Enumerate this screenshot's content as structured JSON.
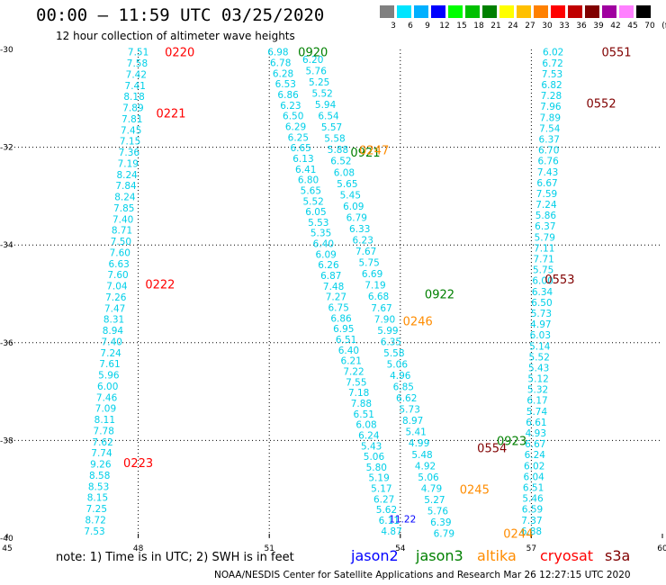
{
  "title": "00:00 – 11:59 UTC 03/25/2020",
  "subtitle": "12 hour collection of altimeter wave heights",
  "color_scale": {
    "unit": "(ft)",
    "labels": [
      "3",
      "6",
      "9",
      "12",
      "15",
      "18",
      "21",
      "24",
      "27",
      "30",
      "33",
      "36",
      "39",
      "42",
      "45",
      "70"
    ],
    "colors": [
      "#808080",
      "#00e5ff",
      "#00b0ff",
      "#0000ff",
      "#00ff00",
      "#00c000",
      "#008000",
      "#ffff00",
      "#ffc000",
      "#ff8000",
      "#ff0000",
      "#c00000",
      "#800000",
      "#a000a0",
      "#ff80ff",
      "#000000"
    ]
  },
  "note": "note: 1) Time is in UTC; 2) SWH is in feet",
  "legend": [
    {
      "name": "jason2",
      "color": "#0000ff"
    },
    {
      "name": "jason3",
      "color": "#008000"
    },
    {
      "name": "altika",
      "color": "#ff8c00"
    },
    {
      "name": "cryosat",
      "color": "#ff0000"
    },
    {
      "name": "s3a",
      "color": "#800000"
    }
  ],
  "credit": "NOAA/NESDIS Center for Satellite Applications and Research    Mar 26 12:27:15 UTC 2020",
  "chart_data": {
    "type": "scatter",
    "x_ticks": [
      "45",
      "48",
      "51",
      "54",
      "57",
      "60"
    ],
    "y_ticks": [
      "-30",
      "-32",
      "-34",
      "-36",
      "-38",
      "-40"
    ],
    "xlim": [
      45,
      60
    ],
    "ylim": [
      -40,
      -30
    ],
    "grid": true,
    "times": [
      {
        "text": "0220",
        "lon": 48.95,
        "lat": -30.05,
        "color": "#ff0000"
      },
      {
        "text": "0221",
        "lon": 48.75,
        "lat": -31.3,
        "color": "#ff0000"
      },
      {
        "text": "0222",
        "lon": 48.5,
        "lat": -34.8,
        "color": "#ff0000"
      },
      {
        "text": "0223",
        "lon": 48.0,
        "lat": -38.45,
        "color": "#ff0000"
      },
      {
        "text": "0920",
        "lon": 52.0,
        "lat": -30.05,
        "color": "#008000"
      },
      {
        "text": "0921",
        "lon": 53.2,
        "lat": -32.1,
        "color": "#008000"
      },
      {
        "text": "0922",
        "lon": 54.9,
        "lat": -35.0,
        "color": "#008000"
      },
      {
        "text": "0923",
        "lon": 56.55,
        "lat": -38.0,
        "color": "#008000"
      },
      {
        "text": "0247",
        "lon": 53.4,
        "lat": -32.05,
        "color": "#ff8c00"
      },
      {
        "text": "0246",
        "lon": 54.4,
        "lat": -35.55,
        "color": "#ff8c00"
      },
      {
        "text": "0245",
        "lon": 55.7,
        "lat": -39.0,
        "color": "#ff8c00"
      },
      {
        "text": "0244",
        "lon": 56.7,
        "lat": -39.9,
        "color": "#ff8c00"
      },
      {
        "text": "0551",
        "lon": 58.95,
        "lat": -30.05,
        "color": "#800000"
      },
      {
        "text": "0552",
        "lon": 58.6,
        "lat": -31.1,
        "color": "#800000"
      },
      {
        "text": "0553",
        "lon": 57.65,
        "lat": -34.7,
        "color": "#800000"
      },
      {
        "text": "0554",
        "lon": 56.1,
        "lat": -38.15,
        "color": "#800000"
      }
    ],
    "tracks": [
      {
        "values": [
          "7.51",
          "7.58",
          "7.42",
          "7.41",
          "8.18",
          "7.89",
          "7.81",
          "7.45",
          "7.15",
          "7.36",
          "7.19",
          "8.24",
          "7.84",
          "8.24",
          "7.85",
          "7.40",
          "8.71",
          "7.50",
          "7.60",
          "6.63",
          "7.60",
          "7.04",
          "7.26",
          "7.47",
          "8.31",
          "8.94",
          "7.40",
          "7.24",
          "7.61",
          "5.96",
          "6.00",
          "7.46",
          "7.09",
          "8.11",
          "7.78",
          "7.62",
          "7.74",
          "9.26",
          "8.58",
          "8.53",
          "8.15",
          "7.25",
          "8.72",
          "7.53"
        ],
        "lon_start": 48.0,
        "lat_start": -30.05,
        "lon_end": 47.0,
        "lat_end": -39.85,
        "color": "#00cfe8"
      },
      {
        "values": [
          "6.98",
          "6.78",
          "6.28",
          "6.53",
          "6.86",
          "6.23",
          "6.50",
          "6.29",
          "6.25",
          "6.65",
          "6.13",
          "6.41",
          "6.80",
          "5.65",
          "5.52",
          "6.05",
          "5.53",
          "5.35",
          "6.40",
          "6.09",
          "6.26",
          "6.87",
          "7.48",
          "7.27",
          "6.75",
          "6.86",
          "6.95",
          "6.51",
          "6.40",
          "6.21",
          "7.22",
          "7.55",
          "7.18",
          "7.88",
          "6.51",
          "6.08",
          "6.24",
          "5.43",
          "5.06",
          "5.80",
          "5.19",
          "5.17",
          "6.27",
          "5.62",
          "6.11",
          "4.87"
        ],
        "lon_start": 51.2,
        "lat_start": -30.05,
        "lon_end": 53.8,
        "lat_end": -39.85,
        "color": "#00cfe8"
      },
      {
        "values": [
          "6.20",
          "5.76",
          "5.25",
          "5.52",
          "5.94",
          "6.54",
          "5.57",
          "5.58",
          "5.88",
          "6.52",
          "6.08",
          "5.65",
          "5.45",
          "6.09",
          "6.79",
          "6.33",
          "6.23",
          "7.67",
          "5.75",
          "6.69",
          "7.19",
          "6.68",
          "7.67",
          "7.90",
          "5.99",
          "6.35",
          "5.58",
          "5.06",
          "4.96",
          "6.85",
          "6.62",
          "5.73",
          "8.97",
          "5.41",
          "4.99",
          "5.48",
          "4.92",
          "5.06",
          "4.79",
          "5.27",
          "5.76",
          "6.39",
          "6.79"
        ],
        "lon_start": 52.0,
        "lat_start": -30.2,
        "lon_end": 55.0,
        "lat_end": -39.9,
        "color": "#00cfe8"
      },
      {
        "values": [
          "6.02",
          "6.72",
          "7.53",
          "6.82",
          "7.28",
          "7.96",
          "7.89",
          "7.54",
          "6.37",
          "6.70",
          "6.76",
          "7.43",
          "6.67",
          "7.59",
          "7.24",
          "5.86",
          "6.37",
          "5.79",
          "7.11",
          "7.71",
          "5.75",
          "6.00",
          "6.34",
          "6.50",
          "5.73",
          "4.97",
          "6.03",
          "5.14",
          "5.52",
          "5.43",
          "5.12",
          "5.32",
          "6.17",
          "5.74",
          "6.61",
          "4.93",
          "6.67",
          "6.24",
          "6.02",
          "6.04",
          "6.51",
          "5.46",
          "6.59",
          "7.37",
          "6.88"
        ],
        "lon_start": 57.5,
        "lat_start": -30.05,
        "lon_end": 57.0,
        "lat_end": -39.85,
        "color": "#00cfe8"
      },
      {
        "values": [
          "11.22"
        ],
        "lon_start": 54.05,
        "lat_start": -39.6,
        "lon_end": 54.05,
        "lat_end": -39.6,
        "color": "#0000ff"
      }
    ]
  }
}
